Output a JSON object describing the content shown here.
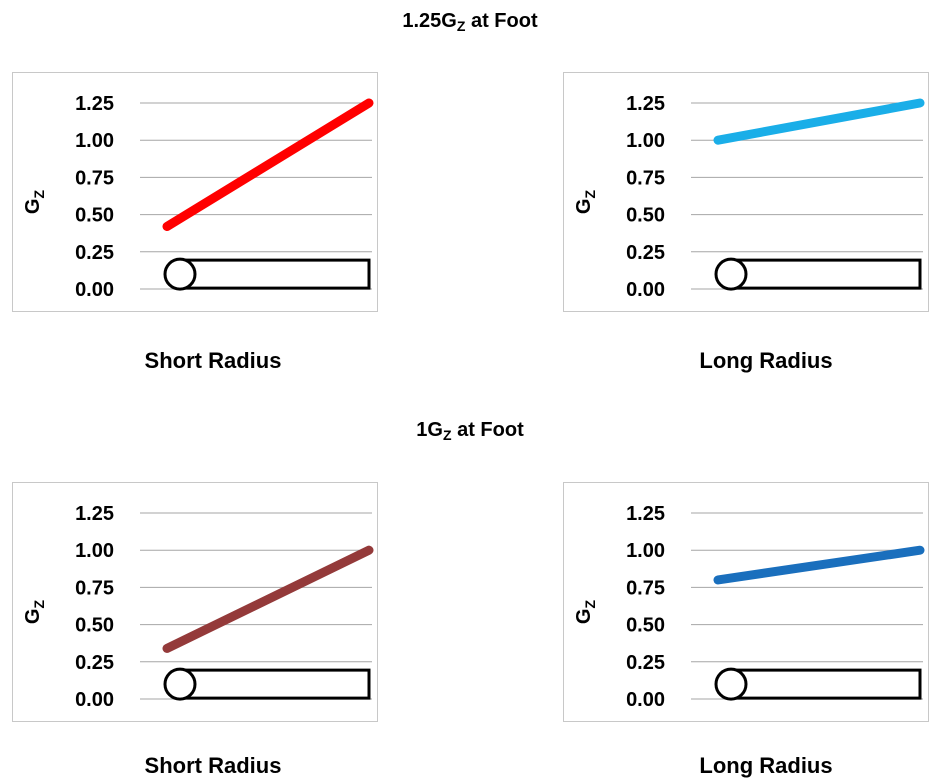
{
  "sections": [
    {
      "title_main": "1.25G",
      "title_sub": "Z",
      "title_rest": " at Foot"
    },
    {
      "title_main": "1G",
      "title_sub": "Z",
      "title_rest": " at Foot"
    }
  ],
  "chart_data": [
    {
      "type": "line",
      "title": "",
      "xlabel": "Short Radius",
      "ylabel_main": "G",
      "ylabel_sub": "Z",
      "ylim": [
        0,
        1.25
      ],
      "yticks": [
        "0.00",
        "0.25",
        "0.50",
        "0.75",
        "1.00",
        "1.25"
      ],
      "grid": true,
      "series": [
        {
          "values": [
            0.42,
            1.25
          ],
          "color": "#ff0000"
        }
      ],
      "icon": "centrifuge-arm-icon"
    },
    {
      "type": "line",
      "title": "",
      "xlabel": "Long Radius",
      "ylabel_main": "G",
      "ylabel_sub": "Z",
      "ylim": [
        0,
        1.25
      ],
      "yticks": [
        "0.00",
        "0.25",
        "0.50",
        "0.75",
        "1.00",
        "1.25"
      ],
      "grid": true,
      "series": [
        {
          "values": [
            1.0,
            1.25
          ],
          "color": "#1aaee8"
        }
      ],
      "icon": "centrifuge-arm-icon"
    },
    {
      "type": "line",
      "title": "",
      "xlabel": "Short Radius",
      "ylabel_main": "G",
      "ylabel_sub": "Z",
      "ylim": [
        0,
        1.25
      ],
      "yticks": [
        "0.00",
        "0.25",
        "0.50",
        "0.75",
        "1.00",
        "1.25"
      ],
      "grid": true,
      "series": [
        {
          "values": [
            0.34,
            1.0
          ],
          "color": "#943a3a"
        }
      ],
      "icon": "centrifuge-arm-icon"
    },
    {
      "type": "line",
      "title": "",
      "xlabel": "Long Radius",
      "ylabel_main": "G",
      "ylabel_sub": "Z",
      "ylim": [
        0,
        1.25
      ],
      "yticks": [
        "0.00",
        "0.25",
        "0.50",
        "0.75",
        "1.00",
        "1.25"
      ],
      "grid": true,
      "series": [
        {
          "values": [
            0.8,
            1.0
          ],
          "color": "#1a6fbd"
        }
      ],
      "icon": "centrifuge-arm-icon"
    }
  ]
}
